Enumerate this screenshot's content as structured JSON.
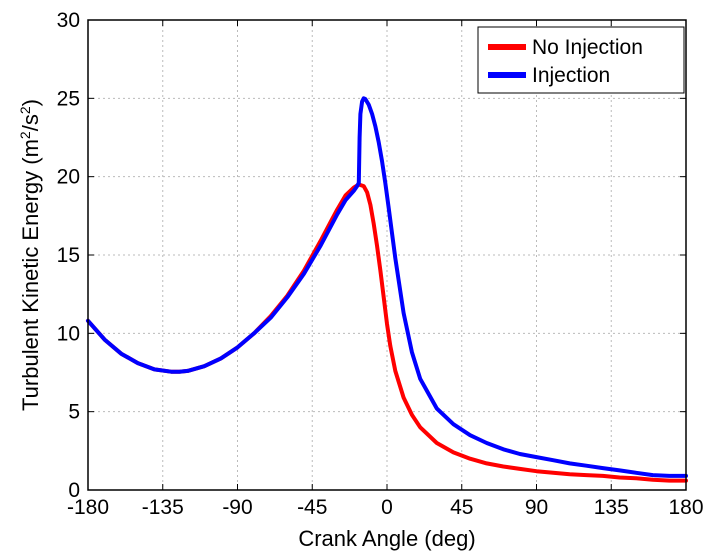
{
  "chart_data": {
    "type": "line",
    "xlabel": "Crank Angle (deg)",
    "ylabel_prefix": "Turbulent Kinetic Energy (m",
    "ylabel_sup1": "2",
    "ylabel_mid": "/s",
    "ylabel_sup2": "2",
    "ylabel_suffix": ")",
    "xlim": [
      -180,
      180
    ],
    "ylim": [
      0,
      30
    ],
    "xticks": [
      "-180",
      "-135",
      "-90",
      "-45",
      "0",
      "45",
      "90",
      "135",
      "180"
    ],
    "yticks": [
      "0",
      "5",
      "10",
      "15",
      "20",
      "25",
      "30"
    ],
    "grid": true,
    "legend_position": "top-right",
    "series": [
      {
        "name": "No Injection",
        "color": "#ff0000",
        "x": [
          -180,
          -170,
          -160,
          -150,
          -140,
          -130,
          -125,
          -120,
          -110,
          -100,
          -90,
          -80,
          -70,
          -60,
          -50,
          -40,
          -35,
          -30,
          -25,
          -20,
          -17,
          -14,
          -12,
          -10,
          -8,
          -6,
          -4,
          -2,
          0,
          2,
          5,
          10,
          15,
          20,
          30,
          40,
          50,
          60,
          70,
          80,
          90,
          100,
          110,
          120,
          130,
          140,
          150,
          160,
          170,
          180
        ],
        "y": [
          10.8,
          9.6,
          8.7,
          8.1,
          7.7,
          7.55,
          7.55,
          7.6,
          7.9,
          8.4,
          9.1,
          10.0,
          11.1,
          12.4,
          14.0,
          15.9,
          16.9,
          17.9,
          18.8,
          19.3,
          19.5,
          19.4,
          19.0,
          18.2,
          17.0,
          15.6,
          14.0,
          12.3,
          10.6,
          9.2,
          7.6,
          5.9,
          4.8,
          4.0,
          3.0,
          2.4,
          2.0,
          1.7,
          1.5,
          1.35,
          1.2,
          1.1,
          1.0,
          0.95,
          0.9,
          0.8,
          0.75,
          0.65,
          0.6,
          0.6
        ]
      },
      {
        "name": "Injection",
        "color": "#0000ff",
        "x": [
          -180,
          -170,
          -160,
          -150,
          -140,
          -130,
          -125,
          -120,
          -110,
          -100,
          -90,
          -80,
          -70,
          -60,
          -50,
          -40,
          -35,
          -30,
          -25,
          -20,
          -18,
          -17,
          -16.5,
          -16,
          -15,
          -14,
          -13,
          -11,
          -9,
          -7,
          -5,
          -3,
          -1,
          1,
          3,
          5,
          10,
          15,
          20,
          30,
          40,
          50,
          60,
          70,
          80,
          90,
          100,
          110,
          120,
          130,
          140,
          150,
          160,
          170,
          180
        ],
        "y": [
          10.8,
          9.6,
          8.7,
          8.1,
          7.7,
          7.55,
          7.55,
          7.6,
          7.9,
          8.4,
          9.1,
          10.0,
          11.0,
          12.3,
          13.8,
          15.6,
          16.6,
          17.6,
          18.5,
          19.1,
          19.4,
          19.6,
          22.5,
          24.0,
          24.8,
          25.0,
          24.95,
          24.6,
          24.0,
          23.2,
          22.2,
          21.0,
          19.6,
          18.0,
          16.4,
          14.8,
          11.3,
          8.8,
          7.1,
          5.2,
          4.2,
          3.5,
          3.0,
          2.6,
          2.3,
          2.1,
          1.9,
          1.7,
          1.55,
          1.4,
          1.25,
          1.1,
          0.95,
          0.9,
          0.9
        ]
      }
    ]
  }
}
